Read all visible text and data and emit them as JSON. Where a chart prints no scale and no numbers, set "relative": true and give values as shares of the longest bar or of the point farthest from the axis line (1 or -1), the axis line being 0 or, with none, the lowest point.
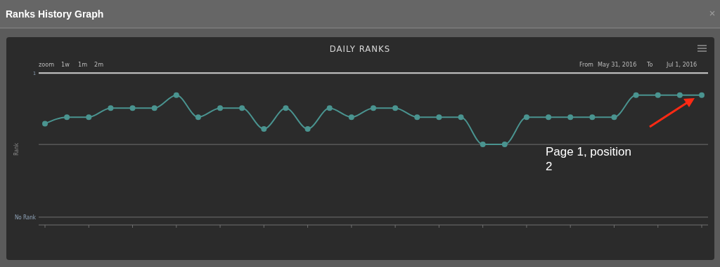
{
  "chart_data": {
    "type": "line",
    "title": "Ranks History Graph",
    "subtitle": "DAILY RANKS",
    "ylabel": "Rank",
    "annotations": [
      "zoom",
      "1w",
      "1m",
      "2m",
      "From",
      "May 31, 2016",
      "To",
      "Jul 1, 2016",
      "Page 1, position 2"
    ],
    "categories": [
      null,
      null,
      null,
      null,
      null,
      null,
      null,
      null,
      null,
      null,
      null,
      null,
      null,
      null,
      null,
      null,
      null,
      null,
      null,
      null,
      null,
      null,
      null,
      null,
      null,
      null,
      null,
      null,
      null,
      null,
      null
    ],
    "series": [
      {
        "color": "#4a9490",
        "values": [
          0.78,
          0.83,
          0.83,
          0.9,
          0.9,
          0.9,
          1,
          0.83,
          0.9,
          0.9,
          0.74,
          0.9,
          0.74,
          0.9,
          0.83,
          0.9,
          0.9,
          0.83,
          0.83,
          0.83,
          0.62,
          0.62,
          0.83,
          0.83,
          0.83,
          0.83,
          0.83,
          1,
          1,
          1,
          1
        ]
      }
    ],
    "relative": true,
    "ref_lines": [
      {
        "axis": "y",
        "value": 1.17,
        "label": "1",
        "color": "#cccccc"
      },
      {
        "axis": "y",
        "value": 0.62,
        "color": "#707070"
      },
      {
        "axis": "y",
        "value": 0.06,
        "label": "No Rank",
        "color": "#707070"
      }
    ],
    "marker": "circle",
    "line_style": "solid",
    "legend": false
  }
}
